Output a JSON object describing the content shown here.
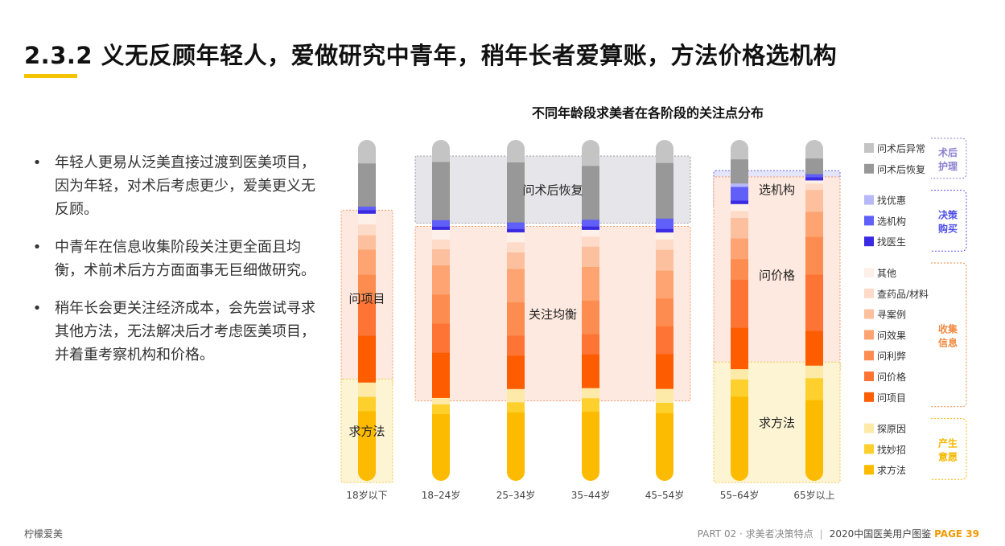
{
  "header": {
    "title": "2.3.2 义无反顾年轻人，爱做研究中青年，稍年长者爱算账，方法价格选机构"
  },
  "bullets": [
    "年轻人更易从泛美直接过渡到医美项目，因为年轻，对术后考虑更少，爱美更义无反顾。",
    "中青年在信息收集阶段关注更全面且均衡，术前术后方方面面事无巨细做研究。",
    "稍年长会更关注经济成本，会先尝试寻求其他方法，无法解决后才考虑医美项目，并着重考察机构和价格。"
  ],
  "footer": {
    "brand": "柠檬爱美",
    "part": "PART 02 · 求美者决策特点",
    "separator": "|",
    "report": "2020中国医美用户图鉴",
    "page": "PAGE 39"
  },
  "chart_data": {
    "type": "bar",
    "stacked": true,
    "title": "不同年龄段求美者在各阶段的关注点分布",
    "categories": [
      "18岁以下",
      "18–24岁",
      "25–34岁",
      "35–44岁",
      "45–54岁",
      "55–64岁",
      "65岁以上"
    ],
    "series": [
      {
        "name": "求方法",
        "color": "#fdbb00",
        "values": [
          17,
          18,
          18,
          18,
          17,
          22,
          23
        ]
      },
      {
        "name": "找妙招",
        "color": "#fdd02e",
        "values": [
          4,
          3,
          3,
          4,
          3,
          5,
          7
        ]
      },
      {
        "name": "探原因",
        "color": "#fde9a8",
        "values": [
          4,
          2,
          4,
          3,
          4,
          3,
          4
        ]
      },
      {
        "name": "问项目",
        "color": "#fd5c00",
        "values": [
          13,
          14,
          10,
          10,
          10,
          12,
          11
        ]
      },
      {
        "name": "问价格",
        "color": "#fd7434",
        "values": [
          10,
          9,
          6,
          6,
          8,
          14,
          18
        ]
      },
      {
        "name": "问利弊",
        "color": "#fd8c50",
        "values": [
          7,
          9,
          10,
          10,
          8,
          6,
          12
        ]
      },
      {
        "name": "问效果",
        "color": "#fda472",
        "values": [
          7,
          9,
          10,
          10,
          8,
          6,
          8
        ]
      },
      {
        "name": "寻案例",
        "color": "#fdc09e",
        "values": [
          4,
          5,
          5,
          6,
          6,
          6,
          7
        ]
      },
      {
        "name": "查药品/材料",
        "color": "#fddbc8",
        "values": [
          3,
          3,
          3,
          3,
          3,
          2,
          2
        ]
      },
      {
        "name": "其他",
        "color": "#fdf0e8",
        "values": [
          3,
          3,
          3,
          2,
          2,
          2,
          1
        ]
      },
      {
        "name": "找医生",
        "color": "#3a2be2",
        "values": [
          1,
          1,
          1,
          1,
          1,
          1,
          1
        ]
      },
      {
        "name": "选机构",
        "color": "#6060f8",
        "values": [
          1,
          2,
          2,
          2,
          3,
          4,
          1
        ]
      },
      {
        "name": "找优惠",
        "color": "#b8b8f8",
        "values": [
          0,
          0,
          0,
          0,
          0,
          1,
          0
        ]
      },
      {
        "name": "问术后恢复",
        "color": "#989898",
        "values": [
          12,
          18,
          18,
          16,
          16,
          7,
          5
        ]
      },
      {
        "name": "问术后异常",
        "color": "#c4c4c4",
        "values": [
          4,
          4,
          4,
          5,
          4,
          3,
          3
        ]
      }
    ],
    "legend_groups": [
      {
        "name": "术后护理",
        "color": "#8a80d0",
        "items": [
          "问术后异常",
          "问术后恢复"
        ]
      },
      {
        "name": "决策购买",
        "color": "#5050e8",
        "items": [
          "找优惠",
          "选机构",
          "找医生"
        ]
      },
      {
        "name": "收集信息",
        "color": "#f08a40",
        "items": [
          "其他",
          "查药品/材料",
          "寻案例",
          "问效果",
          "问利弊",
          "问价格",
          "问项目"
        ]
      },
      {
        "name": "产生意愿",
        "color": "#f5b800",
        "items": [
          "探原因",
          "找妙招",
          "求方法"
        ]
      }
    ],
    "annotations": [
      {
        "text": "问项目",
        "group": "收集信息",
        "bars": [
          0
        ]
      },
      {
        "text": "求方法",
        "group": "产生意愿",
        "bars": [
          0
        ]
      },
      {
        "text": "问术后恢复",
        "group": "术后护理",
        "bars": [
          1,
          4
        ]
      },
      {
        "text": "关注均衡",
        "group": "收集信息",
        "bars": [
          1,
          4
        ]
      },
      {
        "text": "选机构",
        "group": "决策购买",
        "bars": [
          5,
          6
        ]
      },
      {
        "text": "问价格",
        "group": "收集信息",
        "bars": [
          5,
          6
        ]
      },
      {
        "text": "求方法",
        "group": "产生意愿",
        "bars": [
          5,
          6
        ]
      }
    ]
  }
}
